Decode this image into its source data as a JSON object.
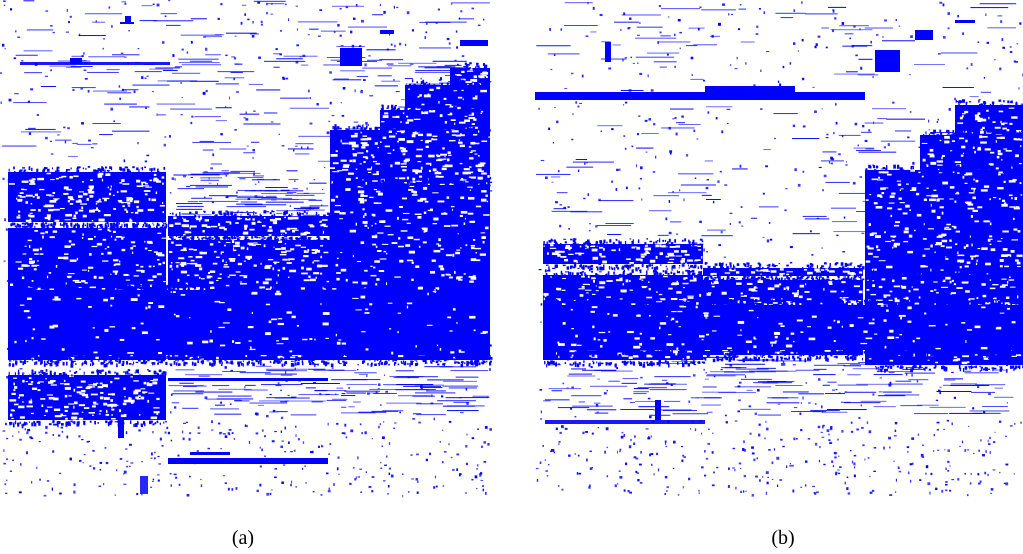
{
  "figure": {
    "panels": [
      {
        "caption": "(a)",
        "mark_color": "#0000ff"
      },
      {
        "caption": "(b)",
        "mark_color": "#0000ff"
      }
    ]
  }
}
